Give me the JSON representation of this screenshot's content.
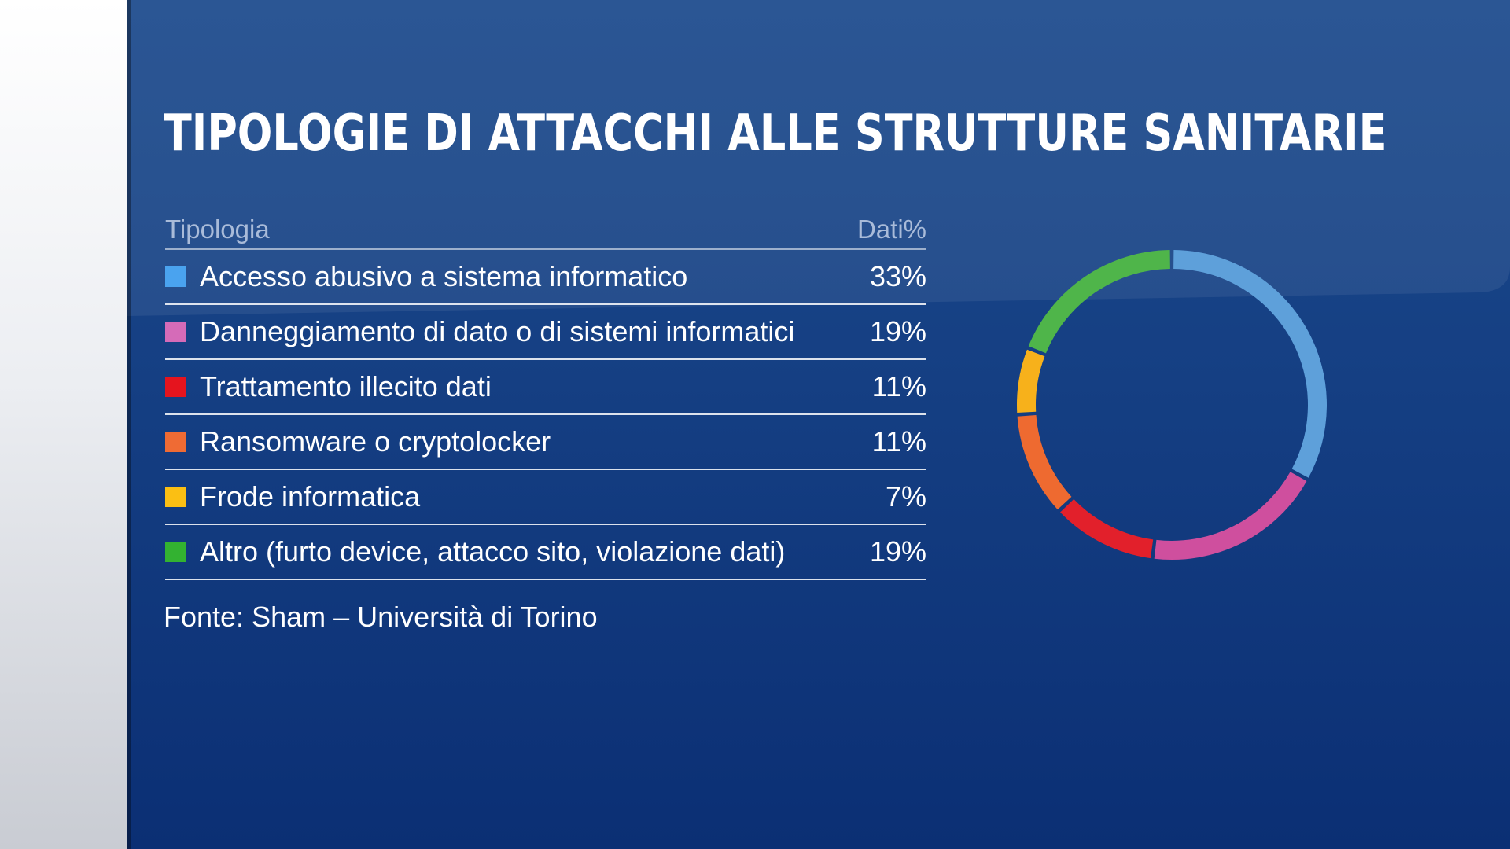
{
  "title": "TIPOLOGIE DI ATTACCHI ALLE STRUTTURE SANITARIE",
  "table": {
    "header_category": "Tipologia",
    "header_value": "Dati%"
  },
  "source": "Fonte: Sham – Università di Torino",
  "colors": {
    "panel": "#153f83",
    "accent_text": "#a9bbd9"
  },
  "chart_data": {
    "type": "pie",
    "donut": true,
    "categories": [
      "Accesso abusivo a sistema informatico",
      "Danneggiamento di dato o di sistemi informatici",
      "Trattamento illecito dati",
      "Ransomware o cryptolocker",
      "Frode informatica",
      "Altro (furto device, attacco sito, violazione dati)"
    ],
    "values": [
      33,
      19,
      11,
      11,
      7,
      19
    ],
    "labels": [
      "33%",
      "19%",
      "11%",
      "11%",
      "7%",
      "19%"
    ],
    "colors": [
      "#5ea0da",
      "#cf4f9e",
      "#e2202b",
      "#ee6a30",
      "#f7b11b",
      "#4fb54a"
    ],
    "swatch_colors": [
      "#4aa3ef",
      "#d56bb8",
      "#e5141e",
      "#ef6b34",
      "#fbbf13",
      "#33b231"
    ]
  }
}
